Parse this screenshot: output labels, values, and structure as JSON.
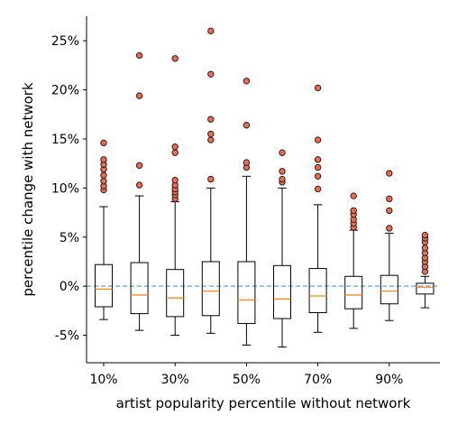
{
  "chart_data": {
    "type": "boxplot",
    "xlabel": "artist popularity percentile without network",
    "ylabel": "percentile change with network",
    "ylim": [
      -7.8,
      27.5
    ],
    "yticks": [
      -5,
      0,
      5,
      10,
      15,
      20,
      25
    ],
    "ytick_labels": [
      "-5%",
      "0%",
      "5%",
      "10%",
      "15%",
      "20%",
      "25%"
    ],
    "xticks": [
      1,
      3,
      5,
      7,
      9
    ],
    "xtick_labels": [
      "10%",
      "30%",
      "50%",
      "70%",
      "90%"
    ],
    "reference_line": {
      "y": 0,
      "style": "dashed",
      "color": "#6f9be0"
    },
    "colors": {
      "median": "#f08a24",
      "flier_fill": "#f26b50",
      "flier_edge": "#222222",
      "box": "#000000"
    },
    "boxes": [
      {
        "position": 1,
        "whisker_low": -3.4,
        "q1": -2.1,
        "median": -0.3,
        "q3": 2.2,
        "whisker_high": 8.1,
        "fliers": [
          9.8,
          10.2,
          10.7,
          11.3,
          11.9,
          12.4,
          12.9,
          14.6
        ]
      },
      {
        "position": 2,
        "whisker_low": -4.5,
        "q1": -2.8,
        "median": -0.9,
        "q3": 2.4,
        "whisker_high": 9.2,
        "fliers": [
          10.3,
          12.3,
          19.4,
          23.5
        ]
      },
      {
        "position": 3,
        "whisker_low": -5.0,
        "q1": -3.1,
        "median": -1.2,
        "q3": 1.7,
        "whisker_high": 8.6,
        "fliers": [
          8.9,
          9.3,
          9.6,
          9.9,
          10.3,
          10.8,
          13.6,
          14.2,
          23.2
        ]
      },
      {
        "position": 4,
        "whisker_low": -4.8,
        "q1": -3.0,
        "median": -0.5,
        "q3": 2.5,
        "whisker_high": 10.0,
        "fliers": [
          10.9,
          14.9,
          15.5,
          17.0,
          21.6,
          26.0
        ]
      },
      {
        "position": 5,
        "whisker_low": -6.0,
        "q1": -3.8,
        "median": -1.4,
        "q3": 2.5,
        "whisker_high": 11.2,
        "fliers": [
          12.1,
          12.6,
          16.4,
          20.9
        ]
      },
      {
        "position": 6,
        "whisker_low": -6.2,
        "q1": -3.3,
        "median": -1.3,
        "q3": 2.1,
        "whisker_high": 10.0,
        "fliers": [
          10.6,
          10.9,
          11.7,
          13.6
        ]
      },
      {
        "position": 7,
        "whisker_low": -4.7,
        "q1": -2.7,
        "median": -1.0,
        "q3": 1.8,
        "whisker_high": 8.3,
        "fliers": [
          9.9,
          11.2,
          12.1,
          12.9,
          14.9,
          20.2
        ]
      },
      {
        "position": 8,
        "whisker_low": -4.3,
        "q1": -2.3,
        "median": -0.9,
        "q3": 1.0,
        "whisker_high": 5.7,
        "fliers": [
          6.0,
          6.4,
          6.8,
          7.3,
          7.7,
          9.2
        ]
      },
      {
        "position": 9,
        "whisker_low": -3.5,
        "q1": -1.8,
        "median": -0.5,
        "q3": 1.1,
        "whisker_high": 5.4,
        "fliers": [
          5.9,
          7.7,
          8.9,
          11.5
        ]
      },
      {
        "position": 10,
        "whisker_low": -2.2,
        "q1": -0.8,
        "median": -0.1,
        "q3": 0.3,
        "whisker_high": 1.0,
        "fliers": [
          1.5,
          2.0,
          2.5,
          2.9,
          3.4,
          3.9,
          4.5,
          4.9,
          5.2
        ]
      }
    ]
  }
}
